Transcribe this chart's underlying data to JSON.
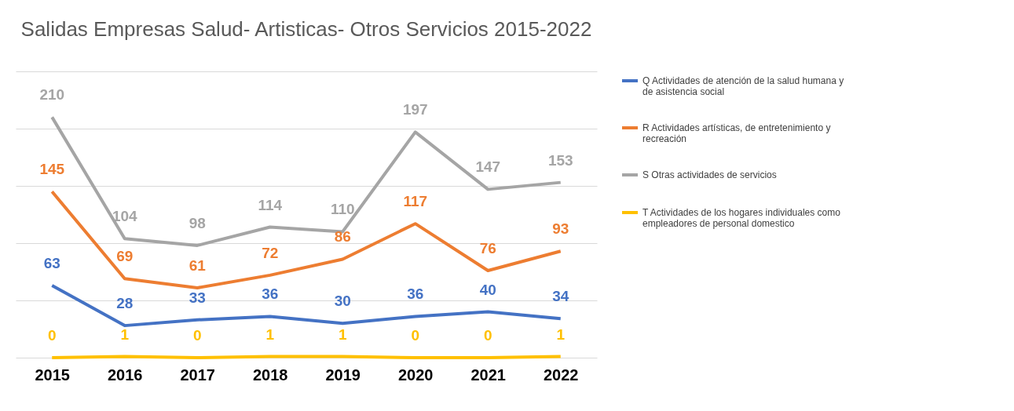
{
  "chart_data": {
    "type": "line",
    "title": "Salidas Empresas Salud- Artisticas- Otros Servicios  2015-2022",
    "categories": [
      "2015",
      "2016",
      "2017",
      "2018",
      "2019",
      "2020",
      "2021",
      "2022"
    ],
    "series": [
      {
        "name": "Q Actividades de atención de la salud humana y de asistencia social",
        "color": "#4472c4",
        "values": [
          63,
          28,
          33,
          36,
          30,
          36,
          40,
          34
        ]
      },
      {
        "name": "R Actividades artísticas, de entretenimiento y recreación",
        "color": "#ed7d31",
        "values": [
          145,
          69,
          61,
          72,
          86,
          117,
          76,
          93
        ]
      },
      {
        "name": "S Otras actividades de servicios",
        "color": "#a5a5a5",
        "values": [
          210,
          104,
          98,
          114,
          110,
          197,
          147,
          153
        ]
      },
      {
        "name": "T  Actividades de los hogares individuales como empleadores de personal domestico",
        "color": "#ffc000",
        "values": [
          0,
          1,
          0,
          1,
          1,
          0,
          0,
          1
        ]
      }
    ],
    "ylim": [
      0,
      250
    ],
    "yticks": [
      {
        "value": 0,
        "label": null
      },
      {
        "value": 50,
        "label": null
      },
      {
        "value": 100,
        "label": null
      },
      {
        "value": 150,
        "label": null
      },
      {
        "value": 200,
        "label": null
      },
      {
        "value": 250,
        "label": null
      }
    ],
    "tick_labels": "x",
    "grid": "y",
    "legend": "right",
    "data_labels": true,
    "marker": "none",
    "line_style": "solid"
  }
}
